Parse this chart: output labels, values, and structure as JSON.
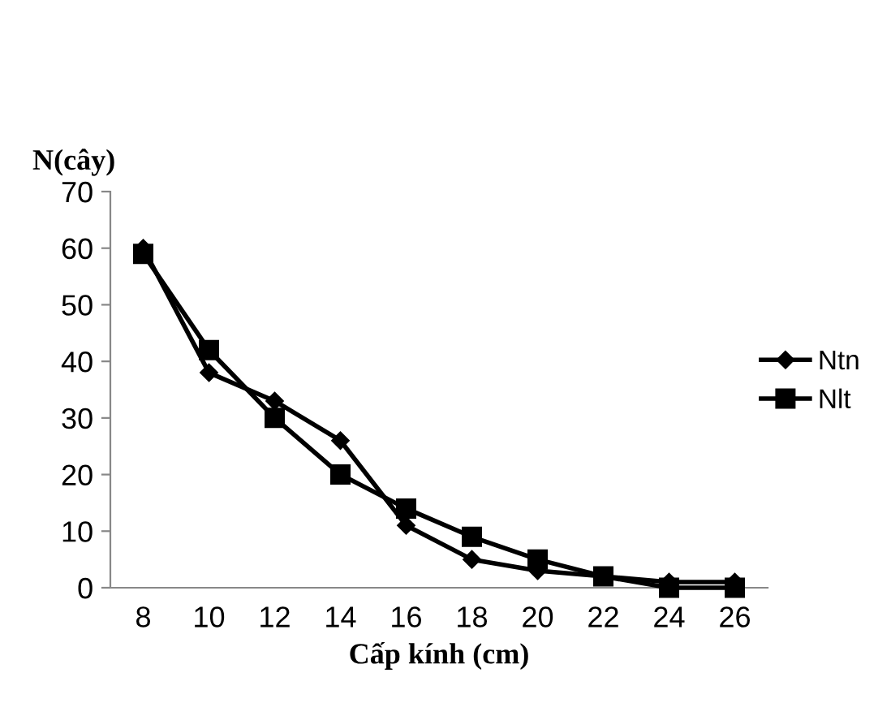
{
  "chart_data": {
    "type": "line",
    "ylabel": "N(cây)",
    "xlabel": "Cấp kính (cm)",
    "categories": [
      "8",
      "10",
      "12",
      "14",
      "16",
      "18",
      "20",
      "22",
      "24",
      "26"
    ],
    "series": [
      {
        "name": "Ntn",
        "color": "#000000",
        "marker": "diamond",
        "values": [
          60,
          38,
          33,
          26,
          11,
          5,
          3,
          2,
          1,
          1
        ]
      },
      {
        "name": "Nlt",
        "color": "#000000",
        "marker": "square",
        "values": [
          59,
          42,
          30,
          20,
          14,
          9,
          5,
          2,
          0,
          0
        ]
      }
    ],
    "ylim": [
      0,
      70
    ],
    "yticks": [
      0,
      10,
      20,
      30,
      40,
      50,
      60,
      70
    ],
    "grid": false,
    "legend": "right",
    "line_style": "solid"
  }
}
